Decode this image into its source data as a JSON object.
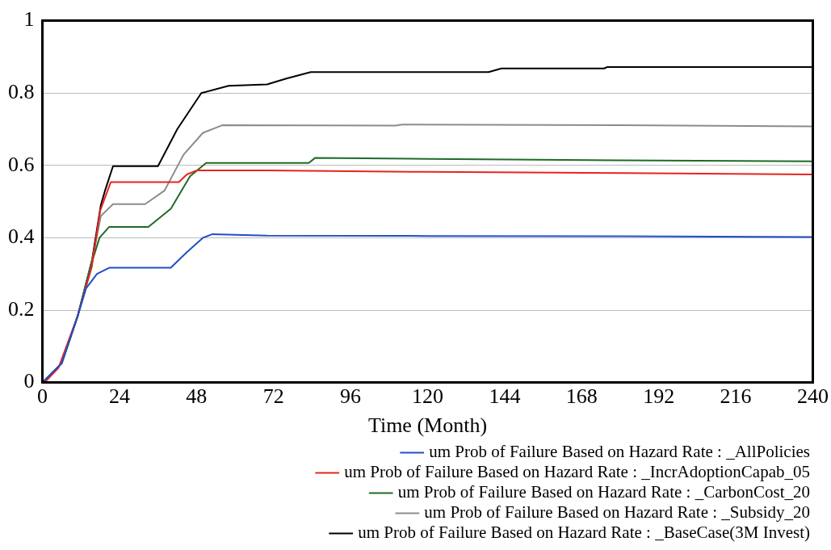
{
  "chart_data": {
    "type": "line",
    "xlabel": "Time (Month)",
    "xlim": [
      0,
      240
    ],
    "xticks": [
      0,
      24,
      48,
      72,
      96,
      120,
      144,
      168,
      192,
      216,
      240
    ],
    "ylim": [
      0,
      1
    ],
    "yticks": [
      0,
      0.2,
      0.4,
      0.6,
      0.8,
      1
    ],
    "grid": "y",
    "legend": "bottom",
    "marker": "none",
    "line_style": "solid",
    "series": [
      {
        "name": "um Prob of Failure Based on Hazard Rate : _AllPolicies",
        "color": "#1f4fc8",
        "x": [
          0,
          6,
          11,
          13.6,
          17,
          20.8,
          40,
          45,
          50,
          53,
          70,
          120,
          180,
          240
        ],
        "values": [
          0,
          0.053,
          0.184,
          0.26,
          0.3,
          0.317,
          0.317,
          0.36,
          0.4,
          0.41,
          0.406,
          0.405,
          0.404,
          0.402
        ]
      },
      {
        "name": "um Prob of Failure Based on Hazard Rate : _IncrAdoptionCapab_05",
        "color": "#e8231e",
        "x": [
          1,
          5,
          11,
          15.4,
          18,
          21.3,
          42.5,
          45,
          48,
          70,
          120,
          180,
          240
        ],
        "values": [
          0.003,
          0.04,
          0.184,
          0.32,
          0.475,
          0.554,
          0.554,
          0.575,
          0.586,
          0.586,
          0.582,
          0.579,
          0.575
        ]
      },
      {
        "name": "um Prob of Failure Based on Hazard Rate : _CarbonCost_20",
        "color": "#1e6b27",
        "x": [
          0,
          6,
          11,
          15.2,
          17.8,
          20.8,
          33,
          40,
          46,
          51,
          70,
          83,
          85,
          120,
          180,
          240
        ],
        "values": [
          0,
          0.053,
          0.184,
          0.326,
          0.4,
          0.43,
          0.43,
          0.48,
          0.57,
          0.607,
          0.607,
          0.607,
          0.621,
          0.618,
          0.614,
          0.611
        ]
      },
      {
        "name": "um Prob of Failure Based on Hazard Rate : _Subsidy_20",
        "color": "#8c8c8c",
        "x": [
          0,
          6,
          11,
          15.7,
          18.2,
          22,
          32,
          38,
          44,
          50,
          56,
          110,
          112,
          180,
          240
        ],
        "values": [
          0,
          0.053,
          0.184,
          0.345,
          0.46,
          0.493,
          0.493,
          0.53,
          0.63,
          0.69,
          0.711,
          0.71,
          0.713,
          0.711,
          0.708
        ]
      },
      {
        "name": "um Prob of Failure Based on Hazard Rate : _BaseCase(3M Invest)",
        "color": "#000000",
        "x": [
          0,
          6,
          11,
          15.5,
          18.2,
          19.5,
          22,
          36,
          42,
          49.5,
          58,
          70,
          76,
          83.6,
          139,
          143,
          175,
          176,
          240
        ],
        "values": [
          0,
          0.053,
          0.184,
          0.34,
          0.49,
          0.53,
          0.598,
          0.598,
          0.7,
          0.8,
          0.82,
          0.824,
          0.84,
          0.858,
          0.858,
          0.868,
          0.868,
          0.872,
          0.872
        ]
      }
    ]
  }
}
